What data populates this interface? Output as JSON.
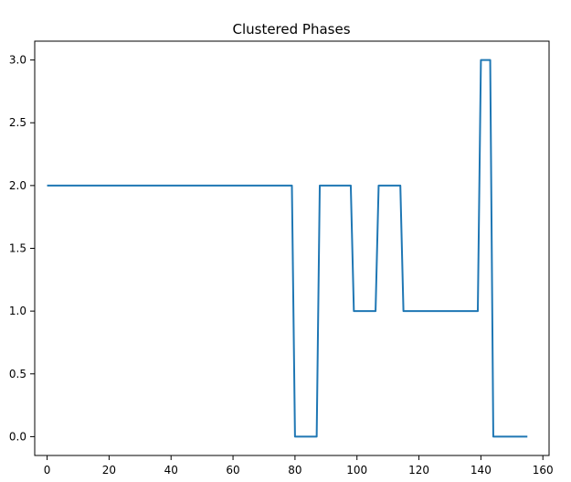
{
  "chart_data": {
    "type": "line",
    "title": "Clustered Phases",
    "xlabel": "",
    "ylabel": "",
    "xlim": [
      -4,
      162
    ],
    "ylim": [
      -0.15,
      3.15
    ],
    "xticks": [
      0,
      20,
      40,
      60,
      80,
      100,
      120,
      140,
      160
    ],
    "xtick_labels": [
      "0",
      "20",
      "40",
      "60",
      "80",
      "100",
      "120",
      "140",
      "160"
    ],
    "yticks": [
      0.0,
      0.5,
      1.0,
      1.5,
      2.0,
      2.5,
      3.0
    ],
    "ytick_labels": [
      "0.0",
      "0.5",
      "1.0",
      "1.5",
      "2.0",
      "2.5",
      "3.0"
    ],
    "grid": false,
    "legend": "none",
    "series": [
      {
        "color": "#1f77b4",
        "x": [
          0,
          79,
          80,
          87,
          88,
          98,
          99,
          106,
          107,
          114,
          115,
          139,
          140,
          143,
          144,
          155
        ],
        "y": [
          2,
          2,
          0,
          0,
          2,
          2,
          1,
          1,
          2,
          2,
          1,
          1,
          3,
          3,
          0,
          0
        ]
      }
    ]
  }
}
